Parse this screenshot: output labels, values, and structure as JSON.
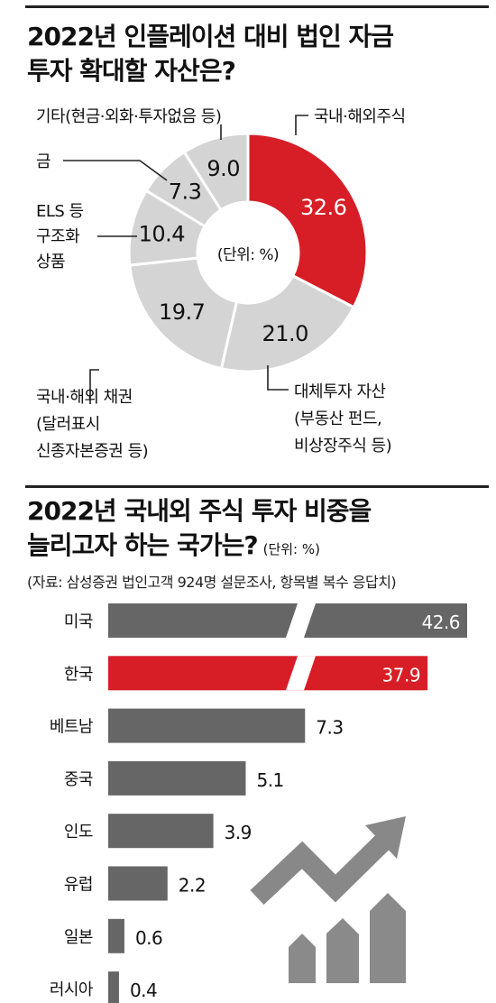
{
  "chart_data": [
    {
      "type": "pie",
      "title": "2022년 인플레이션 대비 법인 자금 투자 확대할 자산은?",
      "unit_label": "(단위: %)",
      "slices": [
        {
          "label": "국내·해외주식",
          "value": 32.6,
          "color": "#d71e26"
        },
        {
          "label": "대체투자 자산 (부동산 펀드, 비상장주식 등)",
          "value": 21.0,
          "color": "#d4d4d4"
        },
        {
          "label": "국내·해외 채권 (달러표시 신종자본증권 등)",
          "value": 19.7,
          "color": "#d4d4d4"
        },
        {
          "label": "ELS 등 구조화 상품",
          "value": 10.4,
          "color": "#d4d4d4"
        },
        {
          "label": "금",
          "value": 7.3,
          "color": "#d4d4d4"
        },
        {
          "label": "기타(현금·외화·투자없음 등)",
          "value": 9.0,
          "color": "#d4d4d4"
        }
      ]
    },
    {
      "type": "bar",
      "title": "2022년 국내외 주식 투자 비중을 늘리고자 하는 국가는?",
      "unit_label": "(단위: %)",
      "source": "(자료: 삼성증권 법인고객 924명 설문조사, 항목별 복수 응답치)",
      "categories": [
        "미국",
        "한국",
        "베트남",
        "중국",
        "인도",
        "유럽",
        "일본",
        "러시아"
      ],
      "values": [
        42.6,
        37.9,
        7.3,
        5.1,
        3.9,
        2.2,
        0.6,
        0.4
      ],
      "highlight": "한국",
      "bar_color": "#666666",
      "highlight_color": "#d71e26"
    }
  ],
  "title1_line1": "2022년 인플레이션 대비 법인 자금",
  "title1_line2": "투자 확대할 자산은?",
  "title2_line1": "2022년 국내외 주식 투자 비중을",
  "title2_line2": "늘리고자 하는 국가는?",
  "pie_labels": {
    "stocks": [
      "국내·해외주식"
    ],
    "alt": [
      "대체투자 자산",
      "(부동산 펀드,",
      "비상장주식 등)"
    ],
    "bonds": [
      "국내·해외 채권",
      "(달러표시",
      "신종자본증권 등)"
    ],
    "els": [
      "ELS 등",
      "구조화",
      "상품"
    ],
    "gold": [
      "금"
    ],
    "etc": [
      "기타(현금·외화·투자없음 등)"
    ]
  }
}
